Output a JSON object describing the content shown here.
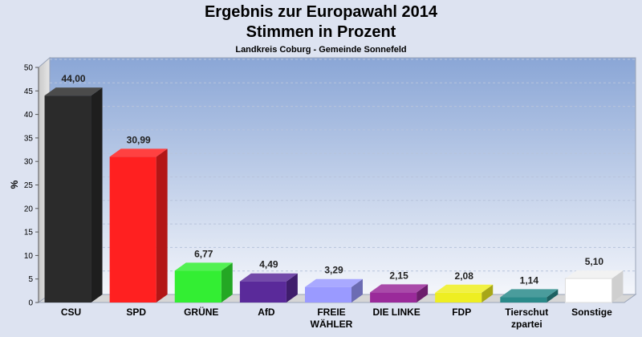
{
  "chart_data": {
    "type": "bar",
    "title": "Ergebnis zur Europawahl 2014",
    "title_line2": "Stimmen in Prozent",
    "subtitle": "Landkreis Coburg - Gemeinde Sonnefeld",
    "ylabel": "%",
    "ylim": [
      0,
      50
    ],
    "yticks": [
      0,
      5,
      10,
      15,
      20,
      25,
      30,
      35,
      40,
      45,
      50
    ],
    "grid": true,
    "categories": [
      [
        "CSU"
      ],
      [
        "SPD"
      ],
      [
        "GRÜNE"
      ],
      [
        "AfD"
      ],
      [
        "FREIE",
        "WÄHLER"
      ],
      [
        "DIE LINKE"
      ],
      [
        "FDP"
      ],
      [
        "Tierschut",
        "zpartei"
      ],
      [
        "Sonstige"
      ]
    ],
    "values": [
      44.0,
      30.99,
      6.77,
      4.49,
      3.29,
      2.15,
      2.08,
      1.14,
      5.1
    ],
    "value_labels": [
      "44,00",
      "30,99",
      "6,77",
      "4,49",
      "3,29",
      "2,15",
      "2,08",
      "1,14",
      "5,10"
    ],
    "colors": [
      "#2b2b2b",
      "#ff2020",
      "#33ee33",
      "#5a2a9a",
      "#9a9aff",
      "#9a2a9a",
      "#eeee22",
      "#2a8a8a",
      "#ffffff"
    ]
  }
}
